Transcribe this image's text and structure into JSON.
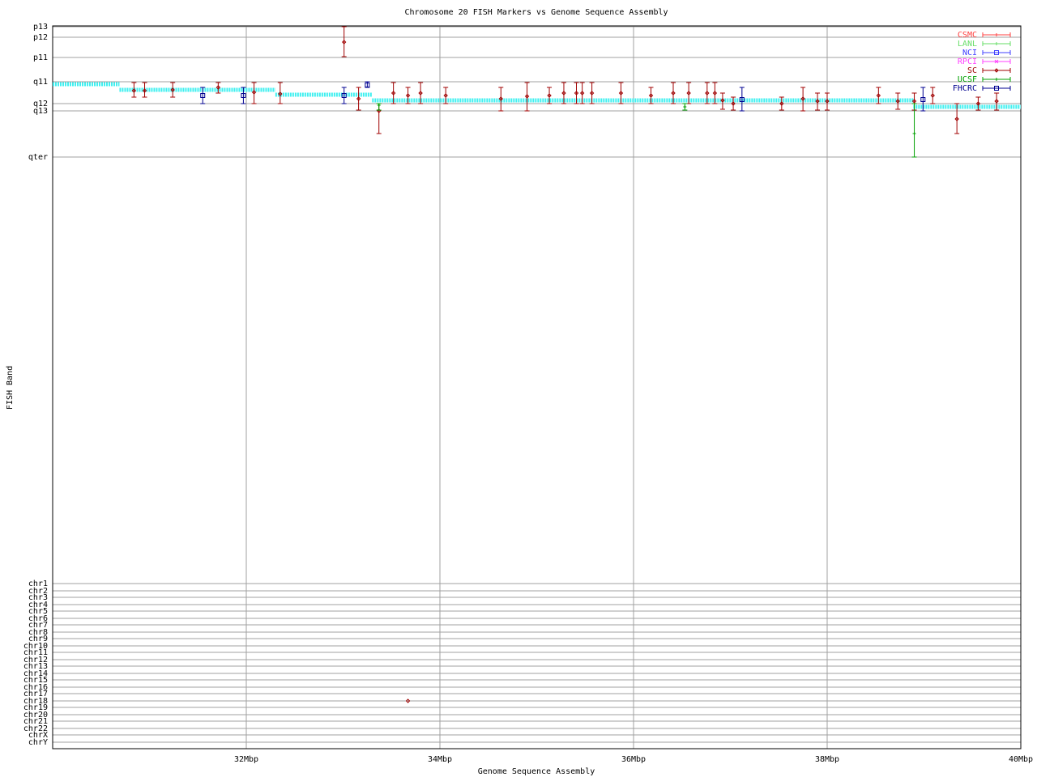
{
  "chart_data": {
    "type": "errorbar",
    "title": "Chromosome 20 FISH Markers vs Genome Sequence Assembly",
    "xlabel": "Genome Sequence Assembly",
    "ylabel": "FISH Band",
    "xlim": [
      30,
      40
    ],
    "xticks": [
      {
        "value": 32,
        "label": "32Mbp"
      },
      {
        "value": 34,
        "label": "34Mbp"
      },
      {
        "value": 36,
        "label": "36Mbp"
      },
      {
        "value": 38,
        "label": "38Mbp"
      },
      {
        "value": 40,
        "label": "40Mbp"
      }
    ],
    "ylim": [
      893,
      0
    ],
    "yticks": [
      {
        "value": 1,
        "label": "p13"
      },
      {
        "value": 14,
        "label": "p12"
      },
      {
        "value": 39,
        "label": "p11"
      },
      {
        "value": 69,
        "label": "q11"
      },
      {
        "value": 96,
        "label": "q12"
      },
      {
        "value": 105,
        "label": "q13"
      },
      {
        "value": 162,
        "label": "qter"
      },
      {
        "value": 689,
        "label": "chr1"
      },
      {
        "value": 698,
        "label": "chr2"
      },
      {
        "value": 706,
        "label": "chr3"
      },
      {
        "value": 715,
        "label": "chr4"
      },
      {
        "value": 723,
        "label": "chr5"
      },
      {
        "value": 732,
        "label": "chr6"
      },
      {
        "value": 740,
        "label": "chr7"
      },
      {
        "value": 749,
        "label": "chr8"
      },
      {
        "value": 757,
        "label": "chr9"
      },
      {
        "value": 766,
        "label": "chr10"
      },
      {
        "value": 774,
        "label": "chr11"
      },
      {
        "value": 783,
        "label": "chr12"
      },
      {
        "value": 791,
        "label": "chr13"
      },
      {
        "value": 800,
        "label": "chr14"
      },
      {
        "value": 808,
        "label": "chr15"
      },
      {
        "value": 817,
        "label": "chr16"
      },
      {
        "value": 825,
        "label": "chr17"
      },
      {
        "value": 834,
        "label": "chr18"
      },
      {
        "value": 842,
        "label": "chr19"
      },
      {
        "value": 851,
        "label": "chr20"
      },
      {
        "value": 859,
        "label": "chr21"
      },
      {
        "value": 868,
        "label": "chr22"
      },
      {
        "value": 876,
        "label": "chrX"
      },
      {
        "value": 885,
        "label": "chrY"
      }
    ],
    "grid": true,
    "legend": "top-right",
    "assembly": {
      "color": "#40f0f0",
      "segments": [
        {
          "x": [
            30.0,
            30.69
          ],
          "y": 72
        },
        {
          "x": [
            30.69,
            32.3
          ],
          "y": 79
        },
        {
          "x": [
            32.3,
            33.3
          ],
          "y": 85
        },
        {
          "x": [
            33.3,
            38.89
          ],
          "y": 92
        },
        {
          "x": [
            38.89,
            40.0
          ],
          "y": 100
        }
      ]
    },
    "series": [
      {
        "name": "CSMC",
        "color": "#ff4040",
        "marker": "plus",
        "x": [],
        "values": [],
        "low": [],
        "high": []
      },
      {
        "name": "LANL",
        "color": "#66dd66",
        "marker": "plus",
        "x": [],
        "values": [],
        "low": [],
        "high": []
      },
      {
        "name": "NCI",
        "color": "#4040ff",
        "marker": "square",
        "x": [],
        "values": [],
        "low": [],
        "high": []
      },
      {
        "name": "RPCI",
        "color": "#ff40ff",
        "marker": "cross",
        "x": [],
        "values": [],
        "low": [],
        "high": []
      },
      {
        "name": "SC",
        "color": "#a00000",
        "marker": "diamond",
        "x": [
          30.84,
          30.95,
          31.24,
          31.71,
          32.08,
          32.35,
          33.01,
          33.16,
          33.37,
          33.52,
          33.67,
          33.67,
          33.8,
          34.06,
          34.63,
          34.9,
          35.13,
          35.28,
          35.41,
          35.47,
          35.57,
          35.87,
          36.18,
          36.41,
          36.57,
          36.76,
          36.84,
          36.92,
          37.03,
          37.53,
          37.75,
          37.9,
          38.0,
          38.53,
          38.73,
          38.9,
          39.09,
          39.34,
          39.56,
          39.75
        ],
        "values": [
          80,
          80,
          79,
          76,
          82,
          84,
          20,
          90,
          105,
          83,
          86,
          834,
          83,
          86,
          90,
          87,
          86,
          83,
          83,
          83,
          83,
          83,
          86,
          83,
          83,
          83,
          83,
          92,
          96,
          96,
          90,
          93,
          93,
          86,
          93,
          93,
          86,
          115,
          96,
          93
        ],
        "low": [
          70,
          70,
          70,
          70,
          70,
          70,
          1,
          76,
          96,
          70,
          76,
          null,
          70,
          76,
          76,
          70,
          76,
          70,
          70,
          70,
          70,
          70,
          76,
          70,
          70,
          70,
          70,
          83,
          88,
          88,
          76,
          83,
          83,
          76,
          83,
          83,
          76,
          96,
          88,
          83
        ],
        "high": [
          88,
          88,
          88,
          83,
          96,
          96,
          38,
          104,
          133,
          96,
          96,
          null,
          96,
          96,
          105,
          105,
          96,
          96,
          96,
          96,
          96,
          96,
          96,
          96,
          96,
          96,
          96,
          103,
          104,
          104,
          105,
          104,
          104,
          96,
          103,
          104,
          96,
          133,
          104,
          104
        ]
      },
      {
        "name": "UCSF",
        "color": "#00a000",
        "marker": "plus",
        "x": [
          33.37,
          36.53,
          38.9
        ],
        "values": [
          98,
          100,
          133
        ],
        "low": [
          96,
          96,
          96
        ],
        "high": [
          104,
          104,
          162
        ]
      },
      {
        "name": "FHCRC",
        "color": "#000090",
        "marker": "square",
        "x": [
          31.55,
          31.97,
          33.01,
          33.25,
          37.12,
          38.99
        ],
        "values": [
          86,
          86,
          86,
          73,
          91,
          91
        ],
        "low": [
          76,
          76,
          76,
          69,
          76,
          76
        ],
        "high": [
          96,
          96,
          96,
          76,
          105,
          105
        ]
      }
    ]
  }
}
